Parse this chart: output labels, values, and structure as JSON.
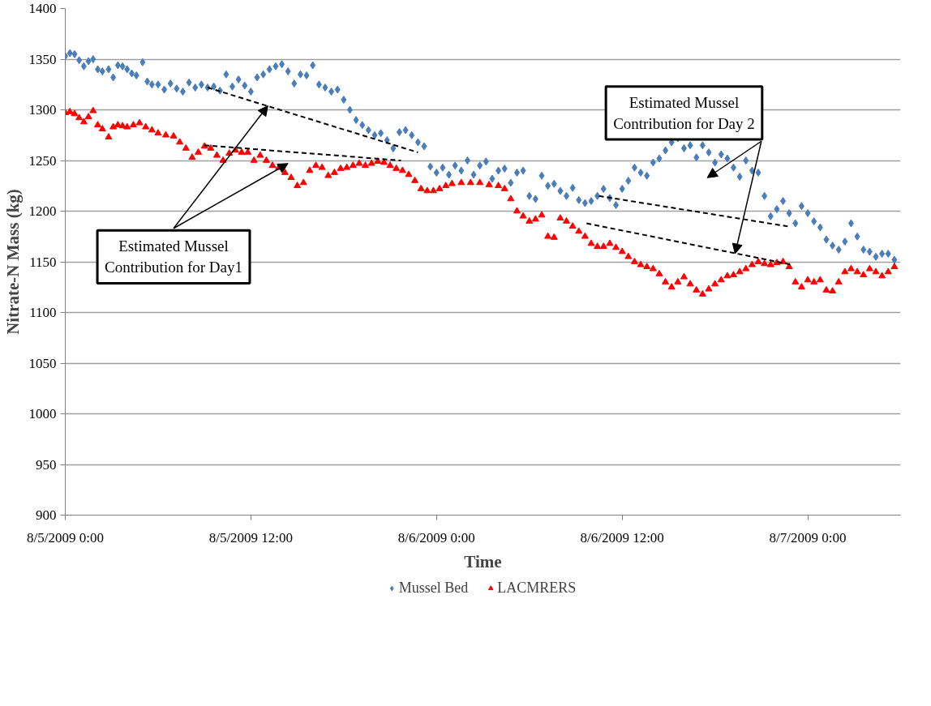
{
  "chart_data": {
    "type": "scatter",
    "xlabel": "Time",
    "ylabel": "Nitrate-N Mass (kg)",
    "xlim": [
      "2009-08-05T00:00",
      "2009-08-07T06:00"
    ],
    "ylim": [
      900,
      1400
    ],
    "xticks": [
      {
        "value": "2009-08-05T00:00",
        "label": "8/5/2009 0:00"
      },
      {
        "value": "2009-08-05T12:00",
        "label": "8/5/2009 12:00"
      },
      {
        "value": "2009-08-06T00:00",
        "label": "8/6/2009 0:00"
      },
      {
        "value": "2009-08-06T12:00",
        "label": "8/6/2009 12:00"
      },
      {
        "value": "2009-08-07T00:00",
        "label": "8/7/2009 0:00"
      }
    ],
    "yticks": [
      900,
      950,
      1000,
      1050,
      1100,
      1150,
      1200,
      1250,
      1300,
      1350,
      1400
    ],
    "grid": "y",
    "legend": "bottom",
    "annotations": [
      {
        "text": "Estimated Mussel Contribution for Day1",
        "x": "2009-08-05T13:06",
        "y": 1304
      },
      {
        "text": "Estimated Mussel Contribution for Day 2",
        "x": "2009-08-06T19:18",
        "y": 1158
      }
    ],
    "series": [
      {
        "name": "Mussel Bed",
        "color": "#4a7ebb",
        "marker": "diamond",
        "x": [
          "2009-08-05T00:00",
          "2009-08-05T00:18",
          "2009-08-05T00:36",
          "2009-08-05T00:54",
          "2009-08-05T01:12",
          "2009-08-05T01:30",
          "2009-08-05T01:48",
          "2009-08-05T02:06",
          "2009-08-05T02:24",
          "2009-08-05T02:48",
          "2009-08-05T03:06",
          "2009-08-05T03:24",
          "2009-08-05T03:42",
          "2009-08-05T04:00",
          "2009-08-05T04:18",
          "2009-08-05T04:36",
          "2009-08-05T05:00",
          "2009-08-05T05:18",
          "2009-08-05T05:36",
          "2009-08-05T06:00",
          "2009-08-05T06:24",
          "2009-08-05T06:48",
          "2009-08-05T07:12",
          "2009-08-05T07:36",
          "2009-08-05T08:00",
          "2009-08-05T08:24",
          "2009-08-05T08:48",
          "2009-08-05T09:12",
          "2009-08-05T09:36",
          "2009-08-05T10:00",
          "2009-08-05T10:24",
          "2009-08-05T10:48",
          "2009-08-05T11:12",
          "2009-08-05T11:36",
          "2009-08-05T12:00",
          "2009-08-05T12:24",
          "2009-08-05T12:48",
          "2009-08-05T13:12",
          "2009-08-05T13:36",
          "2009-08-05T14:00",
          "2009-08-05T14:24",
          "2009-08-05T14:48",
          "2009-08-05T15:12",
          "2009-08-05T15:36",
          "2009-08-05T16:00",
          "2009-08-05T16:24",
          "2009-08-05T16:48",
          "2009-08-05T17:12",
          "2009-08-05T17:36",
          "2009-08-05T18:00",
          "2009-08-05T18:24",
          "2009-08-05T18:48",
          "2009-08-05T19:12",
          "2009-08-05T19:36",
          "2009-08-05T20:00",
          "2009-08-05T20:24",
          "2009-08-05T20:48",
          "2009-08-05T21:12",
          "2009-08-05T21:36",
          "2009-08-05T22:00",
          "2009-08-05T22:24",
          "2009-08-05T22:48",
          "2009-08-05T23:12",
          "2009-08-05T23:36",
          "2009-08-06T00:00",
          "2009-08-06T00:24",
          "2009-08-06T00:48",
          "2009-08-06T01:12",
          "2009-08-06T01:36",
          "2009-08-06T02:00",
          "2009-08-06T02:24",
          "2009-08-06T02:48",
          "2009-08-06T03:12",
          "2009-08-06T03:36",
          "2009-08-06T04:00",
          "2009-08-06T04:24",
          "2009-08-06T04:48",
          "2009-08-06T05:12",
          "2009-08-06T05:36",
          "2009-08-06T06:00",
          "2009-08-06T06:24",
          "2009-08-06T06:48",
          "2009-08-06T07:12",
          "2009-08-06T07:36",
          "2009-08-06T08:00",
          "2009-08-06T08:24",
          "2009-08-06T08:48",
          "2009-08-06T09:12",
          "2009-08-06T09:36",
          "2009-08-06T10:00",
          "2009-08-06T10:24",
          "2009-08-06T10:48",
          "2009-08-06T11:12",
          "2009-08-06T11:36",
          "2009-08-06T12:00",
          "2009-08-06T12:24",
          "2009-08-06T12:48",
          "2009-08-06T13:12",
          "2009-08-06T13:36",
          "2009-08-06T14:00",
          "2009-08-06T14:24",
          "2009-08-06T14:48",
          "2009-08-06T15:12",
          "2009-08-06T15:36",
          "2009-08-06T16:00",
          "2009-08-06T16:24",
          "2009-08-06T16:48",
          "2009-08-06T17:12",
          "2009-08-06T17:36",
          "2009-08-06T18:00",
          "2009-08-06T18:24",
          "2009-08-06T18:48",
          "2009-08-06T19:12",
          "2009-08-06T19:36",
          "2009-08-06T20:00",
          "2009-08-06T20:24",
          "2009-08-06T20:48",
          "2009-08-06T21:12",
          "2009-08-06T21:36",
          "2009-08-06T22:00",
          "2009-08-06T22:24",
          "2009-08-06T22:48",
          "2009-08-06T23:12",
          "2009-08-06T23:36",
          "2009-08-07T00:00",
          "2009-08-07T00:24",
          "2009-08-07T00:48",
          "2009-08-07T01:12",
          "2009-08-07T01:36",
          "2009-08-07T02:00",
          "2009-08-07T02:24",
          "2009-08-07T02:48",
          "2009-08-07T03:12",
          "2009-08-07T03:36",
          "2009-08-07T04:00",
          "2009-08-07T04:24",
          "2009-08-07T04:48",
          "2009-08-07T05:12",
          "2009-08-07T05:36"
        ],
        "values": [
          1353,
          1356,
          1355,
          1349,
          1343,
          1348,
          1350,
          1340,
          1338,
          1340,
          1332,
          1344,
          1343,
          1340,
          1336,
          1334,
          1347,
          1328,
          1325,
          1325,
          1320,
          1326,
          1321,
          1318,
          1327,
          1322,
          1325,
          1322,
          1323,
          1319,
          1335,
          1323,
          1330,
          1324,
          1318,
          1332,
          1335,
          1340,
          1343,
          1345,
          1338,
          1326,
          1335,
          1334,
          1344,
          1325,
          1322,
          1318,
          1320,
          1310,
          1300,
          1290,
          1285,
          1280,
          1275,
          1277,
          1270,
          1262,
          1278,
          1280,
          1275,
          1268,
          1264,
          1244,
          1238,
          1243,
          1236,
          1245,
          1240,
          1250,
          1236,
          1245,
          1249,
          1232,
          1240,
          1242,
          1228,
          1238,
          1240,
          1215,
          1212,
          1235,
          1225,
          1227,
          1220,
          1215,
          1223,
          1211,
          1208,
          1210,
          1215,
          1222,
          1213,
          1206,
          1222,
          1230,
          1243,
          1238,
          1235,
          1248,
          1252,
          1260,
          1268,
          1272,
          1262,
          1265,
          1253,
          1265,
          1258,
          1248,
          1256,
          1252,
          1243,
          1234,
          1250,
          1240,
          1238,
          1215,
          1195,
          1202,
          1210,
          1198,
          1188,
          1205,
          1198,
          1190,
          1184,
          1172,
          1166,
          1162,
          1170,
          1188,
          1175,
          1162,
          1160,
          1155,
          1158,
          1158,
          1152
        ]
      },
      {
        "name": "LACMRERS",
        "color": "#ff0000",
        "marker": "triangle",
        "x": [
          "2009-08-05T00:00",
          "2009-08-05T00:18",
          "2009-08-05T00:36",
          "2009-08-05T00:54",
          "2009-08-05T01:12",
          "2009-08-05T01:30",
          "2009-08-05T01:48",
          "2009-08-05T02:06",
          "2009-08-05T02:24",
          "2009-08-05T02:48",
          "2009-08-05T03:06",
          "2009-08-05T03:24",
          "2009-08-05T03:42",
          "2009-08-05T04:00",
          "2009-08-05T04:24",
          "2009-08-05T04:48",
          "2009-08-05T05:12",
          "2009-08-05T05:36",
          "2009-08-05T06:00",
          "2009-08-05T06:30",
          "2009-08-05T07:00",
          "2009-08-05T07:24",
          "2009-08-05T07:48",
          "2009-08-05T08:12",
          "2009-08-05T08:36",
          "2009-08-05T09:00",
          "2009-08-05T09:24",
          "2009-08-05T09:48",
          "2009-08-05T10:12",
          "2009-08-05T10:36",
          "2009-08-05T11:00",
          "2009-08-05T11:24",
          "2009-08-05T11:48",
          "2009-08-05T12:12",
          "2009-08-05T12:36",
          "2009-08-05T13:00",
          "2009-08-05T13:24",
          "2009-08-05T13:48",
          "2009-08-05T14:12",
          "2009-08-05T14:36",
          "2009-08-05T15:00",
          "2009-08-05T15:24",
          "2009-08-05T15:48",
          "2009-08-05T16:12",
          "2009-08-05T16:36",
          "2009-08-05T17:00",
          "2009-08-05T17:24",
          "2009-08-05T17:48",
          "2009-08-05T18:12",
          "2009-08-05T18:36",
          "2009-08-05T19:00",
          "2009-08-05T19:24",
          "2009-08-05T19:48",
          "2009-08-05T20:12",
          "2009-08-05T20:36",
          "2009-08-05T21:00",
          "2009-08-05T21:24",
          "2009-08-05T21:48",
          "2009-08-05T22:12",
          "2009-08-05T22:36",
          "2009-08-05T23:00",
          "2009-08-05T23:24",
          "2009-08-05T23:48",
          "2009-08-06T00:12",
          "2009-08-06T00:36",
          "2009-08-06T01:00",
          "2009-08-06T01:36",
          "2009-08-06T02:12",
          "2009-08-06T02:48",
          "2009-08-06T03:24",
          "2009-08-06T04:00",
          "2009-08-06T04:24",
          "2009-08-06T04:48",
          "2009-08-06T05:12",
          "2009-08-06T05:36",
          "2009-08-06T06:00",
          "2009-08-06T06:24",
          "2009-08-06T06:48",
          "2009-08-06T07:12",
          "2009-08-06T07:36",
          "2009-08-06T08:00",
          "2009-08-06T08:24",
          "2009-08-06T08:48",
          "2009-08-06T09:12",
          "2009-08-06T09:36",
          "2009-08-06T10:00",
          "2009-08-06T10:24",
          "2009-08-06T10:48",
          "2009-08-06T11:12",
          "2009-08-06T11:36",
          "2009-08-06T12:00",
          "2009-08-06T12:24",
          "2009-08-06T12:48",
          "2009-08-06T13:12",
          "2009-08-06T13:36",
          "2009-08-06T14:00",
          "2009-08-06T14:24",
          "2009-08-06T14:48",
          "2009-08-06T15:12",
          "2009-08-06T15:36",
          "2009-08-06T16:00",
          "2009-08-06T16:24",
          "2009-08-06T16:48",
          "2009-08-06T17:12",
          "2009-08-06T17:36",
          "2009-08-06T18:00",
          "2009-08-06T18:24",
          "2009-08-06T18:48",
          "2009-08-06T19:12",
          "2009-08-06T19:36",
          "2009-08-06T20:00",
          "2009-08-06T20:24",
          "2009-08-06T20:48",
          "2009-08-06T21:12",
          "2009-08-06T21:36",
          "2009-08-06T22:00",
          "2009-08-06T22:24",
          "2009-08-06T22:48",
          "2009-08-06T23:12",
          "2009-08-06T23:36",
          "2009-08-07T00:00",
          "2009-08-07T00:24",
          "2009-08-07T00:48",
          "2009-08-07T01:12",
          "2009-08-07T01:36",
          "2009-08-07T02:00",
          "2009-08-07T02:24",
          "2009-08-07T02:48",
          "2009-08-07T03:12",
          "2009-08-07T03:36",
          "2009-08-07T04:00",
          "2009-08-07T04:24",
          "2009-08-07T04:48",
          "2009-08-07T05:12",
          "2009-08-07T05:36"
        ],
        "values": [
          1297,
          1298,
          1296,
          1292,
          1288,
          1293,
          1299,
          1285,
          1281,
          1273,
          1283,
          1285,
          1284,
          1283,
          1285,
          1287,
          1283,
          1280,
          1277,
          1275,
          1274,
          1268,
          1262,
          1253,
          1258,
          1264,
          1262,
          1255,
          1250,
          1257,
          1260,
          1258,
          1258,
          1250,
          1255,
          1250,
          1245,
          1243,
          1238,
          1233,
          1225,
          1228,
          1240,
          1245,
          1243,
          1235,
          1238,
          1242,
          1243,
          1245,
          1247,
          1245,
          1247,
          1249,
          1248,
          1245,
          1242,
          1240,
          1236,
          1230,
          1222,
          1220,
          1220,
          1222,
          1225,
          1227,
          1228,
          1228,
          1228,
          1226,
          1225,
          1222,
          1212,
          1200,
          1195,
          1190,
          1192,
          1196,
          1175,
          1174,
          1193,
          1190,
          1185,
          1180,
          1175,
          1168,
          1165,
          1165,
          1168,
          1164,
          1160,
          1155,
          1150,
          1147,
          1145,
          1143,
          1138,
          1130,
          1125,
          1130,
          1135,
          1128,
          1122,
          1118,
          1123,
          1128,
          1132,
          1136,
          1137,
          1140,
          1143,
          1147,
          1150,
          1148,
          1147,
          1149,
          1150,
          1145,
          1130,
          1125,
          1132,
          1130,
          1132,
          1122,
          1121,
          1130,
          1140,
          1143,
          1140,
          1137,
          1143,
          1140,
          1136,
          1140,
          1145
        ]
      },
      {
        "type": "line",
        "color": "#000000",
        "line_style": "dashed",
        "marker": "none",
        "x": [
          "2009-08-05T09:12",
          "2009-08-05T22:48"
        ],
        "values": [
          1322,
          1258
        ]
      },
      {
        "type": "line",
        "color": "#000000",
        "line_style": "dashed",
        "marker": "none",
        "x": [
          "2009-08-05T09:00",
          "2009-08-05T21:42"
        ],
        "values": [
          1265,
          1250
        ]
      },
      {
        "type": "line",
        "color": "#000000",
        "line_style": "dashed",
        "marker": "none",
        "x": [
          "2009-08-06T10:30",
          "2009-08-06T22:42"
        ],
        "values": [
          1215,
          1185
        ]
      },
      {
        "type": "line",
        "color": "#000000",
        "line_style": "dashed",
        "marker": "none",
        "x": [
          "2009-08-06T09:42",
          "2009-08-06T23:00"
        ],
        "values": [
          1188,
          1147
        ]
      }
    ]
  }
}
